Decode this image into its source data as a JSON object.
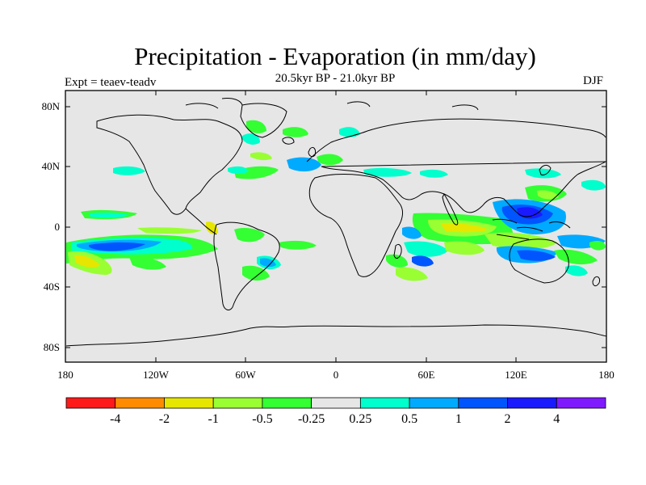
{
  "title": "Precipitation - Evaporation (in mm/day)",
  "subtitle": "20.5kyr BP - 21.0kyr BP",
  "expt_label": "Expt = teaev-teadv",
  "season": "DJF",
  "y_axis_ticks": [
    "80N",
    "40N",
    "0",
    "40S",
    "80S"
  ],
  "x_axis_ticks": [
    "180",
    "120W",
    "60W",
    "0",
    "60E",
    "120E",
    "180"
  ],
  "colorbar": {
    "colors": [
      "#ff1a1a",
      "#ff8c00",
      "#e6e600",
      "#99ff33",
      "#33ff33",
      "#e6e6e6",
      "#00ffcc",
      "#00aaff",
      "#0055ff",
      "#1a1aff",
      "#7f1aff"
    ],
    "labels": [
      "-4",
      "-2",
      "-1",
      "-0.5",
      "-0.25",
      "0.25",
      "0.5",
      "1",
      "2",
      "4"
    ]
  },
  "map_colors": {
    "land_background": "#e6e6e6",
    "coast": "#000000"
  }
}
